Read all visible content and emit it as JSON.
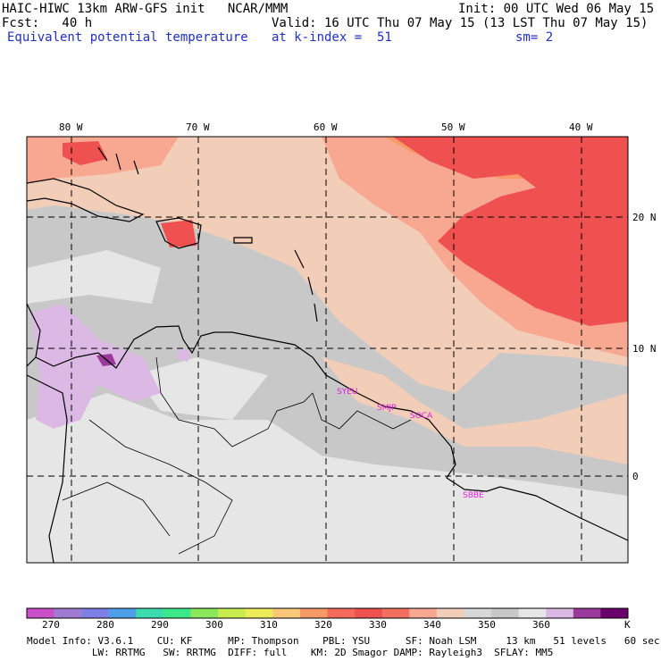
{
  "header": {
    "model_line": "HAIC-HIWC 13km ARW-GFS init   NCAR/MMM",
    "init_line": "Init: 00 UTC Wed 06 May 15",
    "fcst_line": "Fcst:   40 h",
    "valid_line": "Valid: 16 UTC Thu 07 May 15 (13 LST Thu 07 May 15)",
    "field_name": "Equivalent potential temperature",
    "level": "at k-index =  51",
    "smoothing": "sm= 2"
  },
  "axes": {
    "lon_labels": [
      "80 W",
      "70 W",
      "60 W",
      "50 W",
      "40 W"
    ],
    "lat_labels": [
      "20 N",
      "10 N",
      "0"
    ]
  },
  "stations": [
    "SYEU",
    "SMJP",
    "SOCA",
    "SBBE"
  ],
  "colorbar": {
    "unit": "K",
    "tick_labels": [
      "270",
      "280",
      "290",
      "300",
      "310",
      "320",
      "330",
      "340",
      "350",
      "360"
    ],
    "colors": [
      "#c950c9",
      "#a07ad0",
      "#7f7fe8",
      "#4f9fe8",
      "#3cdcb0",
      "#3ce88a",
      "#8ae85a",
      "#c8ec50",
      "#ecec5a",
      "#f8c878",
      "#f89a68",
      "#f56a5a",
      "#ef5050",
      "#f27060",
      "#f8a890",
      "#f2cdb8",
      "#d8d8d8",
      "#c8c8c8",
      "#e6e6e6",
      "#dcb8e4",
      "#9a3a9a",
      "#6a006a"
    ]
  },
  "map_colors": {
    "lightgray": "#e6e6e6",
    "gray": "#c8c8c8",
    "peach": "#f2cdb8",
    "salmon": "#f8a890",
    "orange": "#f89a68",
    "red": "#ef5050",
    "lavender": "#dcb8e4",
    "purple": "#9a3a9a"
  },
  "footer": {
    "line1": "Model Info: V3.6.1    CU: KF      MP: Thompson    PBL: YSU      SF: Noah LSM     13 km   51 levels   60 sec",
    "line2": "           LW: RRTMG   SW: RRTMG  DIFF: full    KM: 2D Smagor DAMP: Rayleigh3  SFLAY: MM5"
  }
}
